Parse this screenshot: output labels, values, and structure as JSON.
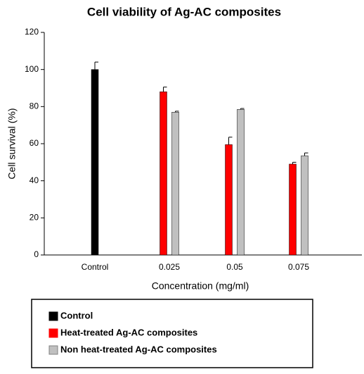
{
  "chart_data": {
    "type": "bar",
    "title": "Cell viability of Ag-AC composites",
    "x_label": "Concentration (mg/ml)",
    "y_label": "Cell survival (%)",
    "categories": [
      "Control",
      "0.025",
      "0.05",
      "0.075"
    ],
    "series": [
      {
        "name": "Control",
        "color": "#000000",
        "values": [
          100,
          null,
          null,
          null
        ],
        "errors": [
          4,
          null,
          null,
          null
        ]
      },
      {
        "name": "Heat-treated Ag-AC composites",
        "color": "#ff0000",
        "values": [
          null,
          88,
          59.5,
          49
        ],
        "errors": [
          null,
          2.5,
          4,
          1
        ]
      },
      {
        "name": "Non heat-treated Ag-AC composites",
        "color": "#c0c0c0",
        "values": [
          null,
          77,
          78.5,
          53.5
        ],
        "errors": [
          null,
          0.5,
          0.5,
          1.5
        ]
      }
    ],
    "ylim": [
      0,
      120
    ],
    "yticks": [
      0,
      20,
      40,
      60,
      80,
      100,
      120
    ],
    "grid": false
  }
}
